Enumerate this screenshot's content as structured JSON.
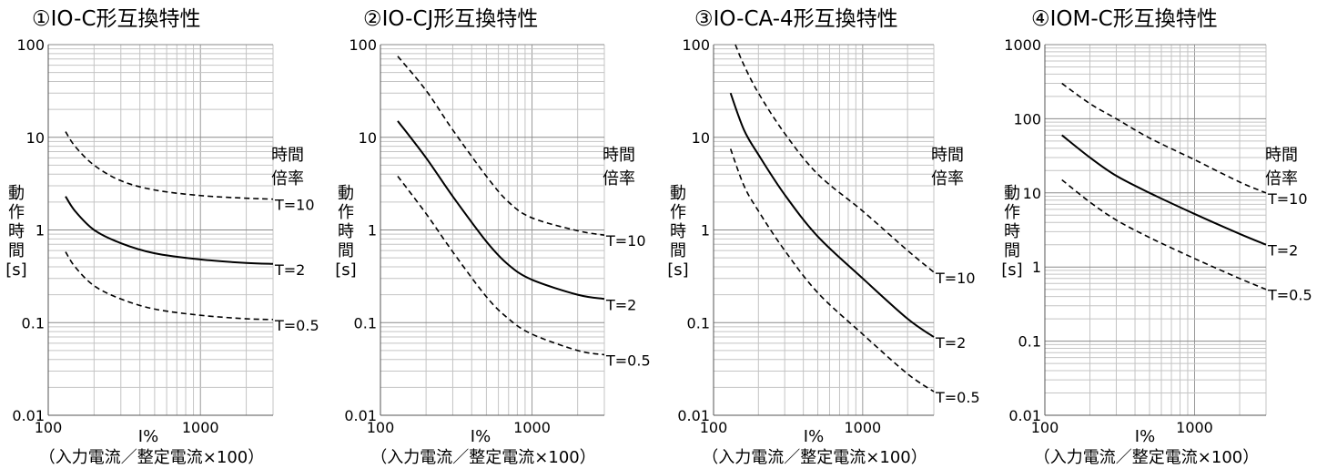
{
  "chart_data": [
    {
      "type": "line",
      "title": "①IO-C形互換特性",
      "x_scale": "log",
      "y_scale": "log",
      "xlim": [
        100,
        3000
      ],
      "ylim": [
        0.01,
        100
      ],
      "x_ticks": [
        "100",
        "1000"
      ],
      "y_ticks": [
        "0.01",
        "0.1",
        "1",
        "10",
        "100"
      ],
      "xlabel": "I%",
      "xlabel_sub": "（入力電流／整定電流×100）",
      "ylabel": [
        "動",
        "作",
        "時",
        "間",
        "[s]"
      ],
      "legend_title": [
        "時間",
        "倍率"
      ],
      "grid": true,
      "series": [
        {
          "name": "T=10",
          "style": "dashed",
          "x": [
            130,
            150,
            200,
            300,
            500,
            1000,
            2000,
            3000
          ],
          "y": [
            11.5,
            8,
            5,
            3.4,
            2.7,
            2.35,
            2.2,
            2.15
          ]
        },
        {
          "name": "T=2",
          "style": "solid",
          "x": [
            130,
            150,
            200,
            300,
            500,
            1000,
            2000,
            3000
          ],
          "y": [
            2.3,
            1.6,
            1.0,
            0.72,
            0.56,
            0.48,
            0.44,
            0.43
          ]
        },
        {
          "name": "T=0.5",
          "style": "dashed",
          "x": [
            130,
            150,
            200,
            300,
            500,
            1000,
            2000,
            3000
          ],
          "y": [
            0.58,
            0.4,
            0.25,
            0.18,
            0.14,
            0.12,
            0.11,
            0.108
          ]
        }
      ]
    },
    {
      "type": "line",
      "title": "②IO-CJ形互換特性",
      "x_scale": "log",
      "y_scale": "log",
      "xlim": [
        100,
        3000
      ],
      "ylim": [
        0.01,
        100
      ],
      "x_ticks": [
        "100",
        "1000"
      ],
      "y_ticks": [
        "0.01",
        "0.1",
        "1",
        "10",
        "100"
      ],
      "xlabel": "I%",
      "xlabel_sub": "（入力電流／整定電流×100）",
      "ylabel": [
        "動",
        "作",
        "時",
        "間",
        "[s]"
      ],
      "legend_title": [
        "時間",
        "倍率"
      ],
      "grid": true,
      "series": [
        {
          "name": "T=10",
          "style": "dashed",
          "x": [
            130,
            200,
            300,
            500,
            700,
            1000,
            2000,
            3000
          ],
          "y": [
            75,
            32,
            12,
            3.8,
            2.0,
            1.35,
            0.98,
            0.88
          ]
        },
        {
          "name": "T=2",
          "style": "solid",
          "x": [
            130,
            200,
            300,
            500,
            700,
            1000,
            2000,
            3000
          ],
          "y": [
            15,
            6.0,
            2.3,
            0.75,
            0.42,
            0.29,
            0.2,
            0.18
          ]
        },
        {
          "name": "T=0.5",
          "style": "dashed",
          "x": [
            130,
            200,
            300,
            500,
            700,
            1000,
            2000,
            3000
          ],
          "y": [
            3.8,
            1.5,
            0.58,
            0.19,
            0.11,
            0.075,
            0.05,
            0.045
          ]
        }
      ]
    },
    {
      "type": "line",
      "title": "③IO-CA-4形互換特性",
      "x_scale": "log",
      "y_scale": "log",
      "xlim": [
        100,
        3000
      ],
      "ylim": [
        0.01,
        100
      ],
      "x_ticks": [
        "100",
        "1000"
      ],
      "y_ticks": [
        "0.01",
        "0.1",
        "1",
        "10",
        "100"
      ],
      "xlabel": "I%",
      "xlabel_sub": "（入力電流／整定電流×100）",
      "ylabel": [
        "動",
        "作",
        "時",
        "間",
        "[s]"
      ],
      "legend_title": [
        "時間",
        "倍率"
      ],
      "grid": true,
      "series": [
        {
          "name": "T=10",
          "style": "dashed",
          "x": [
            140,
            160,
            200,
            300,
            500,
            1000,
            2000,
            3000
          ],
          "y": [
            100,
            60,
            30,
            11,
            4.0,
            1.6,
            0.6,
            0.35
          ]
        },
        {
          "name": "T=2",
          "style": "solid",
          "x": [
            130,
            160,
            200,
            300,
            500,
            1000,
            2000,
            3000
          ],
          "y": [
            30,
            12,
            6.5,
            2.4,
            0.85,
            0.3,
            0.11,
            0.07
          ]
        },
        {
          "name": "T=0.5",
          "style": "dashed",
          "x": [
            130,
            160,
            200,
            300,
            500,
            1000,
            2000,
            3000
          ],
          "y": [
            7.5,
            3.0,
            1.6,
            0.6,
            0.21,
            0.075,
            0.028,
            0.018
          ]
        }
      ]
    },
    {
      "type": "line",
      "title": "④IOM-C形互換特性",
      "x_scale": "log",
      "y_scale": "log",
      "xlim": [
        100,
        3000
      ],
      "ylim": [
        0.01,
        1000
      ],
      "x_ticks": [
        "100",
        "1000"
      ],
      "y_ticks": [
        "0.01",
        "0.1",
        "1",
        "10",
        "100",
        "1000"
      ],
      "xlabel": "I%",
      "xlabel_sub": "（入力電流／整定電流×100）",
      "ylabel": [
        "動",
        "作",
        "時",
        "間",
        "[s]"
      ],
      "legend_title": [
        "時間",
        "倍率"
      ],
      "grid": true,
      "series": [
        {
          "name": "T=10",
          "style": "dashed",
          "x": [
            130,
            200,
            300,
            500,
            1000,
            2000,
            3000
          ],
          "y": [
            300,
            160,
            100,
            55,
            28,
            14,
            10
          ]
        },
        {
          "name": "T=2",
          "style": "solid",
          "x": [
            130,
            200,
            300,
            500,
            1000,
            2000,
            3000
          ],
          "y": [
            60,
            30,
            17,
            10,
            5.2,
            2.8,
            2.0
          ]
        },
        {
          "name": "T=0.5",
          "style": "dashed",
          "x": [
            130,
            200,
            300,
            500,
            1000,
            2000,
            3000
          ],
          "y": [
            15,
            7.5,
            4.3,
            2.5,
            1.3,
            0.7,
            0.5
          ]
        }
      ]
    }
  ]
}
